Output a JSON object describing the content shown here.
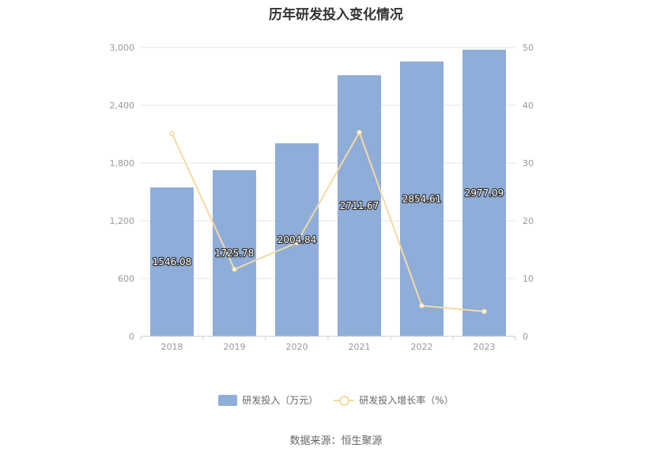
{
  "chart_data": {
    "type": "bar",
    "title": "历年研发投入变化情况",
    "categories": [
      "2018",
      "2019",
      "2020",
      "2021",
      "2022",
      "2023"
    ],
    "series": [
      {
        "name": "研发投入（万元）",
        "type": "bar",
        "axis": "left",
        "values": [
          1546.08,
          1725.78,
          2004.84,
          2711.67,
          2854.61,
          2977.09
        ],
        "labels": [
          "1546.08",
          "1725.78",
          "2004.84",
          "2711.67",
          "2854.61",
          "2977.09"
        ],
        "color": "#8eadd9"
      },
      {
        "name": "研发投入增长率（%）",
        "type": "line",
        "axis": "right",
        "values": [
          35.1,
          11.6,
          16.2,
          35.3,
          5.3,
          4.3
        ],
        "color": "#f5d9a2"
      }
    ],
    "ylim_left": [
      0,
      3000
    ],
    "yticks_left": [
      "0",
      "600",
      "1,200",
      "1,800",
      "2,400",
      "3,000"
    ],
    "ylim_right": [
      0,
      50
    ],
    "yticks_right": [
      "0",
      "10",
      "20",
      "30",
      "40",
      "50"
    ],
    "grid": true,
    "legend_position": "bottom"
  },
  "source_text": "数据来源：恒生聚源"
}
